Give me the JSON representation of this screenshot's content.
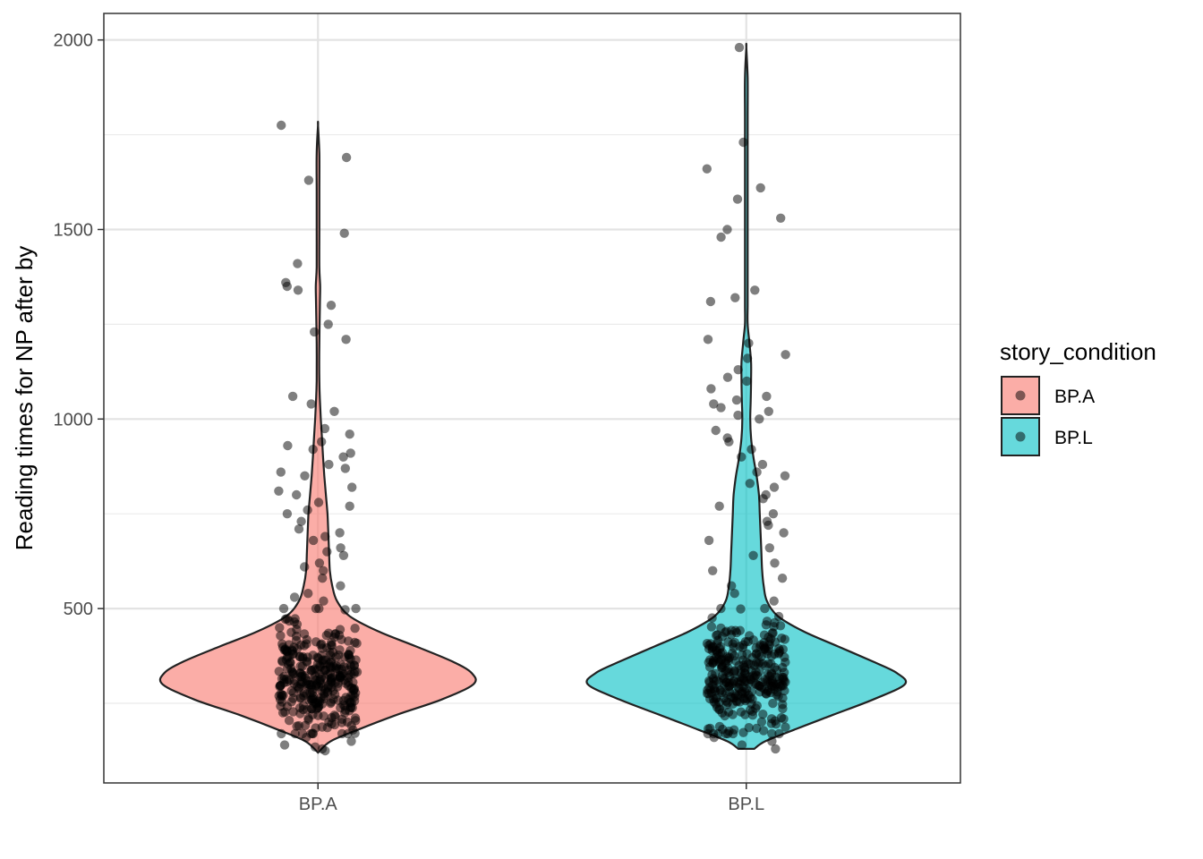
{
  "chart_data": {
    "type": "violin",
    "title": "",
    "xlabel": "",
    "ylabel": "Reading times for NP after by",
    "categories": [
      "BP.A",
      "BP.L"
    ],
    "ylim": [
      40,
      2070
    ],
    "y_ticks": [
      500,
      1000,
      1500,
      2000
    ],
    "y_minor_ticks": [
      250,
      750,
      1250,
      1750
    ],
    "grid": true,
    "legend": {
      "title": "story_condition",
      "position": "right",
      "entries": [
        {
          "label": "BP.A",
          "color": "#F8766D"
        },
        {
          "label": "BP.L",
          "color": "#00BFC4"
        }
      ]
    },
    "series": [
      {
        "name": "BP.A",
        "color": "#F8766D",
        "min": 120,
        "max": 1775,
        "density_profile": [
          [
            120,
            0.0
          ],
          [
            150,
            0.08
          ],
          [
            180,
            0.25
          ],
          [
            220,
            0.5
          ],
          [
            260,
            0.78
          ],
          [
            300,
            0.98
          ],
          [
            330,
            0.97
          ],
          [
            360,
            0.85
          ],
          [
            400,
            0.62
          ],
          [
            440,
            0.38
          ],
          [
            480,
            0.2
          ],
          [
            520,
            0.12
          ],
          [
            560,
            0.09
          ],
          [
            600,
            0.075
          ],
          [
            650,
            0.07
          ],
          [
            700,
            0.065
          ],
          [
            750,
            0.06
          ],
          [
            800,
            0.05
          ],
          [
            850,
            0.04
          ],
          [
            900,
            0.032
          ],
          [
            950,
            0.025
          ],
          [
            1000,
            0.018
          ],
          [
            1050,
            0.012
          ],
          [
            1100,
            0.008
          ],
          [
            1200,
            0.006
          ],
          [
            1300,
            0.012
          ],
          [
            1350,
            0.014
          ],
          [
            1400,
            0.007
          ],
          [
            1500,
            0.004
          ],
          [
            1600,
            0.004
          ],
          [
            1700,
            0.003
          ],
          [
            1775,
            0.0
          ]
        ],
        "outer_points": [
          125,
          130,
          135,
          140,
          150,
          160,
          170,
          180,
          520,
          530,
          540,
          560,
          580,
          600,
          610,
          620,
          640,
          650,
          660,
          680,
          690,
          700,
          710,
          730,
          750,
          760,
          770,
          780,
          800,
          810,
          820,
          850,
          860,
          870,
          880,
          900,
          910,
          920,
          930,
          940,
          960,
          975,
          1020,
          1040,
          1060,
          1210,
          1230,
          1250,
          1300,
          1340,
          1350,
          1360,
          1410,
          1490,
          1630,
          1690,
          1775
        ]
      },
      {
        "name": "BP.L",
        "color": "#00BFC4",
        "min": 130,
        "max": 1980,
        "density_profile": [
          [
            130,
            0.05
          ],
          [
            150,
            0.12
          ],
          [
            180,
            0.3
          ],
          [
            220,
            0.55
          ],
          [
            260,
            0.8
          ],
          [
            300,
            1.0
          ],
          [
            330,
            0.95
          ],
          [
            360,
            0.8
          ],
          [
            400,
            0.58
          ],
          [
            440,
            0.36
          ],
          [
            480,
            0.2
          ],
          [
            520,
            0.13
          ],
          [
            560,
            0.11
          ],
          [
            600,
            0.1
          ],
          [
            650,
            0.095
          ],
          [
            700,
            0.09
          ],
          [
            750,
            0.085
          ],
          [
            800,
            0.08
          ],
          [
            850,
            0.065
          ],
          [
            900,
            0.045
          ],
          [
            950,
            0.03
          ],
          [
            1000,
            0.025
          ],
          [
            1050,
            0.028
          ],
          [
            1100,
            0.03
          ],
          [
            1150,
            0.03
          ],
          [
            1200,
            0.02
          ],
          [
            1250,
            0.008
          ],
          [
            1300,
            0.005
          ],
          [
            1350,
            0.008
          ],
          [
            1400,
            0.006
          ],
          [
            1500,
            0.003
          ],
          [
            1600,
            0.002
          ],
          [
            1700,
            0.002
          ],
          [
            1800,
            0.002
          ],
          [
            1900,
            0.002
          ],
          [
            1980,
            0.0
          ]
        ],
        "outer_points": [
          130,
          140,
          150,
          160,
          520,
          540,
          560,
          580,
          600,
          620,
          640,
          660,
          680,
          700,
          720,
          730,
          750,
          770,
          790,
          800,
          820,
          830,
          850,
          860,
          880,
          900,
          920,
          940,
          950,
          970,
          1000,
          1010,
          1020,
          1030,
          1040,
          1050,
          1060,
          1080,
          1100,
          1110,
          1130,
          1160,
          1170,
          1200,
          1210,
          1310,
          1320,
          1340,
          1480,
          1500,
          1530,
          1580,
          1610,
          1660,
          1730,
          1980
        ]
      }
    ]
  }
}
